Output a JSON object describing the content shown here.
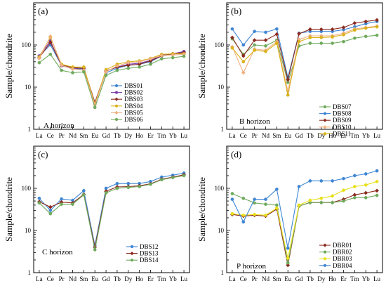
{
  "chart_data": [
    {
      "type": "line",
      "panel_label": "(a)",
      "horizon": "A horizon",
      "ylabel": "Sample/chondrite",
      "yscale": "log",
      "ylim": [
        1,
        1000
      ],
      "yticks": [
        "1",
        "10",
        "100"
      ],
      "categories": [
        "La",
        "Ce",
        "Pr",
        "Nd",
        "Sm",
        "Eu",
        "Gd",
        "Tb",
        "Dy",
        "Ho",
        "Er",
        "Tm",
        "Yb",
        "Lu"
      ],
      "legend_position": "right",
      "series": [
        {
          "name": "DBS01",
          "color": "#3f86d4",
          "marker": "circle",
          "values": [
            55,
            100,
            33,
            27,
            27,
            4.2,
            22,
            28,
            33,
            35,
            40,
            55,
            60,
            68
          ]
        },
        {
          "name": "DBS02",
          "color": "#7b3fb0",
          "marker": "circle",
          "values": [
            55,
            125,
            32,
            28,
            28,
            4.4,
            24,
            30,
            35,
            37,
            43,
            58,
            62,
            70
          ]
        },
        {
          "name": "DBS03",
          "color": "#8b2a1f",
          "marker": "diamond",
          "values": [
            50,
            115,
            34,
            29,
            28,
            4.3,
            24,
            30,
            33,
            35,
            42,
            55,
            62,
            66
          ]
        },
        {
          "name": "DBS04",
          "color": "#d9b21a",
          "marker": "circle",
          "values": [
            52,
            150,
            35,
            30,
            30,
            4.0,
            26,
            35,
            40,
            42,
            48,
            60,
            62,
            62
          ]
        },
        {
          "name": "DBS05",
          "color": "#f0b080",
          "marker": "diamond",
          "values": [
            48,
            160,
            33,
            27,
            25,
            3.8,
            23,
            32,
            38,
            40,
            47,
            56,
            58,
            60
          ]
        },
        {
          "name": "DBS06",
          "color": "#6faa5c",
          "marker": "circle",
          "values": [
            38,
            60,
            25,
            22,
            23,
            3.3,
            19,
            25,
            28,
            30,
            35,
            47,
            50,
            54
          ]
        }
      ]
    },
    {
      "type": "line",
      "panel_label": "(b)",
      "horizon": "B horizon",
      "ylabel": "Sample/chondrite",
      "yscale": "log",
      "ylim": [
        1,
        1000
      ],
      "yticks": [
        "1",
        "10",
        "100"
      ],
      "categories": [
        "La",
        "Ce",
        "Pr",
        "Nd",
        "Sm",
        "Eu",
        "Gd",
        "Tb",
        "Dy",
        "Ho",
        "Er",
        "Tm",
        "Yb",
        "Lu"
      ],
      "legend_position": "bottom-right",
      "series": [
        {
          "name": "DBS07",
          "color": "#6faa5c",
          "marker": "circle",
          "values": [
            140,
            60,
            100,
            95,
            130,
            13,
            95,
            110,
            110,
            110,
            120,
            145,
            160,
            170
          ]
        },
        {
          "name": "DBS08",
          "color": "#3f86d4",
          "marker": "circle",
          "values": [
            240,
            100,
            210,
            200,
            240,
            17,
            190,
            210,
            210,
            210,
            230,
            270,
            320,
            360
          ]
        },
        {
          "name": "DBS09",
          "color": "#8b2a1f",
          "marker": "diamond",
          "values": [
            150,
            55,
            130,
            130,
            180,
            15,
            185,
            235,
            235,
            235,
            260,
            330,
            360,
            390
          ]
        },
        {
          "name": "DBS10",
          "color": "#f0b080",
          "marker": "diamond",
          "values": [
            90,
            22,
            80,
            75,
            120,
            8,
            135,
            165,
            165,
            165,
            190,
            240,
            260,
            280
          ]
        },
        {
          "name": "DBS11",
          "color": "#d9b21a",
          "marker": "circle",
          "values": [
            85,
            40,
            75,
            70,
            110,
            6.5,
            120,
            150,
            150,
            155,
            175,
            225,
            250,
            270
          ]
        }
      ]
    },
    {
      "type": "line",
      "panel_label": "(c)",
      "horizon": "C horizon",
      "ylabel": "Sample/chondrite",
      "yscale": "log",
      "ylim": [
        1,
        1000
      ],
      "yticks": [
        "1",
        "10",
        "100"
      ],
      "categories": [
        "La",
        "Ce",
        "Pr",
        "Nd",
        "Sm",
        "Eu",
        "Gd",
        "Tb",
        "Dy",
        "Ho",
        "Er",
        "Tm",
        "Yb",
        "Lu"
      ],
      "legend_position": "bottom-right",
      "series": [
        {
          "name": "DBS12",
          "color": "#3f86d4",
          "marker": "circle",
          "values": [
            58,
            30,
            56,
            52,
            88,
            4.4,
            100,
            130,
            130,
            130,
            145,
            185,
            205,
            230
          ]
        },
        {
          "name": "DBS13",
          "color": "#8b2a1f",
          "marker": "diamond",
          "values": [
            48,
            36,
            47,
            45,
            72,
            4.0,
            85,
            108,
            110,
            115,
            128,
            165,
            185,
            210
          ]
        },
        {
          "name": "DBS14",
          "color": "#6faa5c",
          "marker": "circle",
          "values": [
            45,
            25,
            42,
            42,
            70,
            3.5,
            78,
            100,
            105,
            110,
            125,
            160,
            180,
            200
          ]
        }
      ]
    },
    {
      "type": "line",
      "panel_label": "(d)",
      "horizon": "P horizon",
      "ylabel": "Sample/chondrite",
      "yscale": "log",
      "ylim": [
        1,
        1000
      ],
      "yticks": [
        "1",
        "10",
        "100"
      ],
      "categories": [
        "La",
        "Ce",
        "Pr",
        "Nd",
        "Sm",
        "Eu",
        "Gd",
        "Tb",
        "Dy",
        "Ho",
        "Er",
        "Tm",
        "Yb",
        "Lu"
      ],
      "legend_position": "bottom-right",
      "series": [
        {
          "name": "DBR01",
          "color": "#8b2a1f",
          "marker": "diamond",
          "values": [
            24,
            22,
            23,
            22,
            32,
            1.5,
            38,
            46,
            46,
            46,
            55,
            70,
            78,
            88
          ]
        },
        {
          "name": "DBR02",
          "color": "#6faa5c",
          "marker": "circle",
          "values": [
            75,
            58,
            45,
            42,
            40,
            1.7,
            38,
            46,
            46,
            46,
            50,
            60,
            60,
            68
          ]
        },
        {
          "name": "DBR03",
          "color": "#e8e01a",
          "marker": "circle",
          "values": [
            25,
            23,
            24,
            23,
            34,
            2.2,
            40,
            52,
            58,
            66,
            90,
            110,
            120,
            145
          ]
        },
        {
          "name": "DBR04",
          "color": "#3f86d4",
          "marker": "circle",
          "values": [
            55,
            16,
            55,
            55,
            95,
            3.8,
            110,
            150,
            150,
            150,
            170,
            200,
            220,
            260
          ]
        }
      ]
    }
  ]
}
